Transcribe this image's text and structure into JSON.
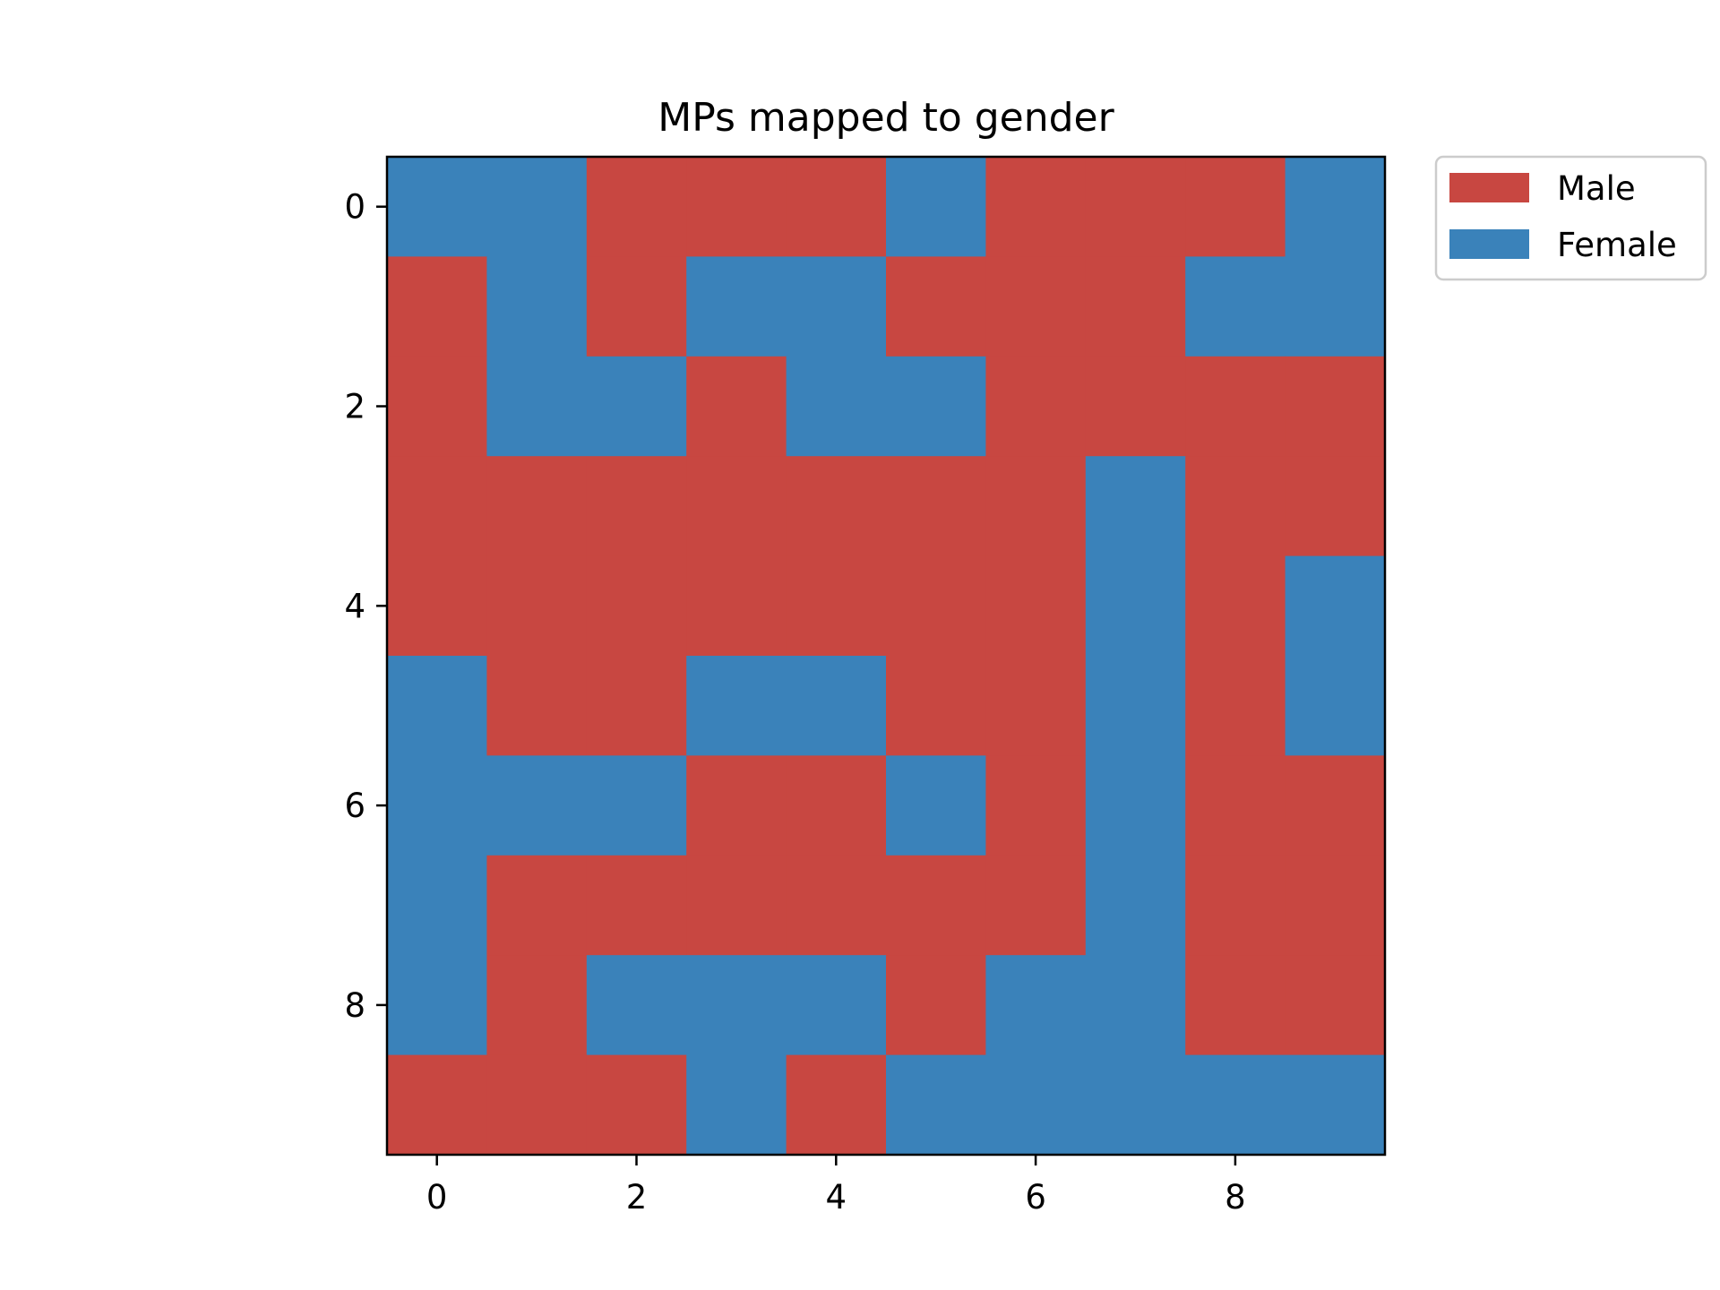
{
  "chart_data": {
    "type": "heatmap",
    "title": "MPs mapped to gender",
    "xlabel": "",
    "ylabel": "",
    "rows": 10,
    "cols": 10,
    "xlim": [
      -0.5,
      9.5
    ],
    "ylim": [
      9.5,
      -0.5
    ],
    "x_ticks": [
      0,
      2,
      4,
      6,
      8
    ],
    "y_ticks": [
      0,
      2,
      4,
      6,
      8
    ],
    "categories": [
      "Male",
      "Female"
    ],
    "colors": {
      "Male": "#c84741",
      "Female": "#3a82ba"
    },
    "values": [
      [
        "Female",
        "Female",
        "Male",
        "Male",
        "Male",
        "Female",
        "Male",
        "Male",
        "Male",
        "Female"
      ],
      [
        "Male",
        "Female",
        "Male",
        "Female",
        "Female",
        "Male",
        "Male",
        "Male",
        "Female",
        "Female"
      ],
      [
        "Male",
        "Female",
        "Female",
        "Male",
        "Female",
        "Female",
        "Male",
        "Male",
        "Male",
        "Male"
      ],
      [
        "Male",
        "Male",
        "Male",
        "Male",
        "Male",
        "Male",
        "Male",
        "Female",
        "Male",
        "Male"
      ],
      [
        "Male",
        "Male",
        "Male",
        "Male",
        "Male",
        "Male",
        "Male",
        "Female",
        "Male",
        "Female"
      ],
      [
        "Female",
        "Male",
        "Male",
        "Female",
        "Female",
        "Male",
        "Male",
        "Female",
        "Male",
        "Female"
      ],
      [
        "Female",
        "Female",
        "Female",
        "Male",
        "Male",
        "Female",
        "Male",
        "Female",
        "Male",
        "Male"
      ],
      [
        "Female",
        "Male",
        "Male",
        "Male",
        "Male",
        "Male",
        "Male",
        "Female",
        "Male",
        "Male"
      ],
      [
        "Female",
        "Male",
        "Female",
        "Female",
        "Female",
        "Male",
        "Female",
        "Female",
        "Male",
        "Male"
      ],
      [
        "Male",
        "Male",
        "Male",
        "Female",
        "Male",
        "Female",
        "Female",
        "Female",
        "Female",
        "Female"
      ]
    ],
    "legend": {
      "placement": "outside-top-right",
      "entries": [
        {
          "label": "Male",
          "color": "#c84741"
        },
        {
          "label": "Female",
          "color": "#3a82ba"
        }
      ]
    },
    "grid": false
  }
}
